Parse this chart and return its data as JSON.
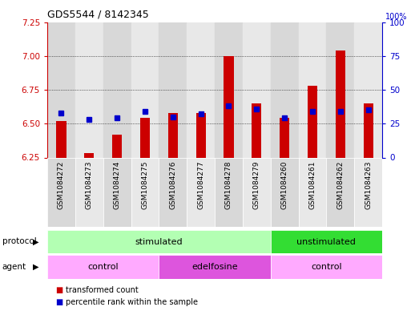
{
  "title": "GDS5544 / 8142345",
  "samples": [
    "GSM1084272",
    "GSM1084273",
    "GSM1084274",
    "GSM1084275",
    "GSM1084276",
    "GSM1084277",
    "GSM1084278",
    "GSM1084279",
    "GSM1084260",
    "GSM1084261",
    "GSM1084262",
    "GSM1084263"
  ],
  "red_values": [
    6.52,
    6.28,
    6.42,
    6.54,
    6.58,
    6.58,
    7.0,
    6.65,
    6.54,
    6.78,
    7.04,
    6.65
  ],
  "blue_percentiles": [
    33,
    28,
    29,
    34,
    30,
    32,
    38,
    36,
    29,
    34,
    34,
    35
  ],
  "base_value": 6.25,
  "ylim": [
    6.25,
    7.25
  ],
  "yticks": [
    6.25,
    6.5,
    6.75,
    7.0,
    7.25
  ],
  "y2ticks": [
    0,
    25,
    50,
    75,
    100
  ],
  "y2lim": [
    0,
    100
  ],
  "red_color": "#cc0000",
  "blue_color": "#0000cc",
  "protocol_groups": [
    {
      "label": "stimulated",
      "start": 0,
      "end": 8,
      "color": "#b3ffb3"
    },
    {
      "label": "unstimulated",
      "start": 8,
      "end": 12,
      "color": "#33dd33"
    }
  ],
  "agent_groups": [
    {
      "label": "control",
      "start": 0,
      "end": 4,
      "color": "#ffaaff"
    },
    {
      "label": "edelfosine",
      "start": 4,
      "end": 8,
      "color": "#dd55dd"
    },
    {
      "label": "control",
      "start": 8,
      "end": 12,
      "color": "#ffaaff"
    }
  ],
  "legend_items": [
    {
      "label": "transformed count",
      "color": "#cc0000"
    },
    {
      "label": "percentile rank within the sample",
      "color": "#0000cc"
    }
  ],
  "tick_color_left": "#cc0000",
  "tick_color_right": "#0000cc",
  "bg_color": "#ffffff",
  "col_bg_even": "#d8d8d8",
  "col_bg_odd": "#e8e8e8",
  "bar_width": 0.35,
  "marker_size": 4
}
